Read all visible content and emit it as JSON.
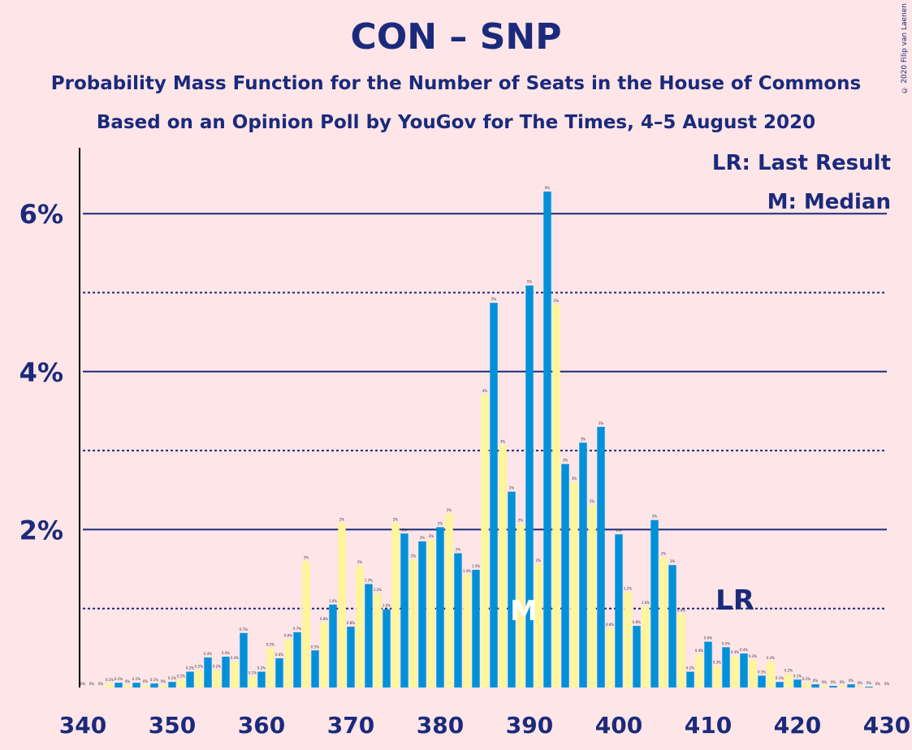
{
  "chart_data": {
    "type": "bar",
    "title": "CON – SNP",
    "subtitle_1": "Probability Mass Function for the Number of Seats in the House of Commons",
    "subtitle_2": "Based on an Opinion Poll by YouGov for The Times, 4–5 August 2020",
    "copyright": "© 2020 Filip van Laenen",
    "legend": {
      "lr": "LR: Last Result",
      "m": "M: Median"
    },
    "y_tick_labels": [
      "2%",
      "4%",
      "6%"
    ],
    "y_ticks": [
      2,
      4,
      6
    ],
    "x_tick_labels": [
      "340",
      "350",
      "360",
      "370",
      "380",
      "390",
      "400",
      "410",
      "420",
      "430"
    ],
    "xlim": [
      340,
      430
    ],
    "ylim": [
      0,
      6.8
    ],
    "colors": {
      "blue": "#0091D9",
      "yellow": "#FFF59A",
      "line": "#1B2A7A",
      "background": "#FDE5E8"
    },
    "median": {
      "seat": 390,
      "label": "M"
    },
    "last_result": {
      "seat": 413,
      "label": "LR"
    },
    "series": [
      {
        "color": "blue",
        "x": [
          340,
          342,
          344,
          346,
          348,
          350,
          352,
          354,
          356,
          358,
          360,
          362,
          364,
          366,
          368,
          370,
          372,
          374,
          376,
          378,
          380,
          382,
          384,
          386,
          388,
          390,
          392,
          394,
          396,
          398,
          400,
          402,
          404,
          406,
          408,
          410,
          412,
          414,
          416,
          418,
          420,
          422,
          424,
          426,
          428,
          430
        ],
        "values": [
          0,
          0,
          0.06,
          0.06,
          0.05,
          0.07,
          0.2,
          0.38,
          0.39,
          0.69,
          0.2,
          0.37,
          0.7,
          0.47,
          1.05,
          0.77,
          1.31,
          0.99,
          1.95,
          1.85,
          2.03,
          1.7,
          1.49,
          4.87,
          2.48,
          5.09,
          6.28,
          2.83,
          3.1,
          3.3,
          1.94,
          0.78,
          2.12,
          1.55,
          0.2,
          0.58,
          0.51,
          0.43,
          0.15,
          0.07,
          0.1,
          0.04,
          0.02,
          0.04,
          0.01,
          0
        ],
        "labels": [
          "0%",
          "0%",
          "0.1%",
          "0.1%",
          "0.1%",
          "0.1%",
          "0.2%",
          "0.4%",
          "0.4%",
          "0.7%",
          "0.2%",
          "0.4%",
          "0.7%",
          "0.5%",
          "1.0%",
          "0.8%",
          "1.3%",
          "1.0%",
          "2%",
          "2%",
          "2%",
          "2%",
          "1.5%",
          "5%",
          "2%",
          "5%",
          "6%",
          "3%",
          "3%",
          "3%",
          "2%",
          "0.8%",
          "2%",
          "2%",
          "0.2%",
          "0.6%",
          "0.5%",
          "0.4%",
          "0.1%",
          "0.1%",
          "0.1%",
          "0%",
          "0%",
          "0%",
          "0%",
          "0%"
        ]
      },
      {
        "color": "yellow",
        "x": [
          341,
          343,
          345,
          347,
          349,
          351,
          353,
          355,
          357,
          359,
          361,
          363,
          365,
          367,
          369,
          371,
          373,
          375,
          377,
          379,
          381,
          383,
          385,
          387,
          389,
          391,
          393,
          395,
          397,
          399,
          401,
          403,
          405,
          407,
          409,
          411,
          413,
          415,
          417,
          419,
          421,
          423,
          425,
          427,
          429
        ],
        "values": [
          0,
          0.05,
          0.03,
          0.03,
          0.03,
          0.1,
          0.22,
          0.22,
          0.33,
          0.14,
          0.5,
          0.61,
          1.6,
          0.82,
          2.08,
          1.54,
          1.19,
          2.08,
          1.62,
          1.87,
          2.2,
          1.43,
          3.71,
          3.07,
          2.07,
          1.56,
          4.85,
          2.6,
          2.31,
          0.75,
          1.21,
          1.03,
          1.65,
          0.93,
          0.42,
          0.27,
          0.4,
          0.35,
          0.33,
          0.17,
          0.06,
          0.02,
          0.02,
          0.01,
          0
        ],
        "labels": [
          "0%",
          "0.1%",
          "0%",
          "0%",
          "0%",
          "0.1%",
          "0.2%",
          "0.2%",
          "0.3%",
          "0.1%",
          "0.5%",
          "0.6%",
          "2%",
          "0.8%",
          "2%",
          "2%",
          "1.2%",
          "2%",
          "2%",
          "2%",
          "2%",
          "1.4%",
          "4%",
          "3%",
          "2%",
          "2%",
          "5%",
          "3%",
          "2%",
          "0.8%",
          "1.2%",
          "1.0%",
          "2%",
          "0.9%",
          "0.4%",
          "0.3%",
          "0.4%",
          "0.3%",
          "0.3%",
          "0.2%",
          "0.1%",
          "0%",
          "0%",
          "0%",
          "0%"
        ]
      }
    ]
  }
}
